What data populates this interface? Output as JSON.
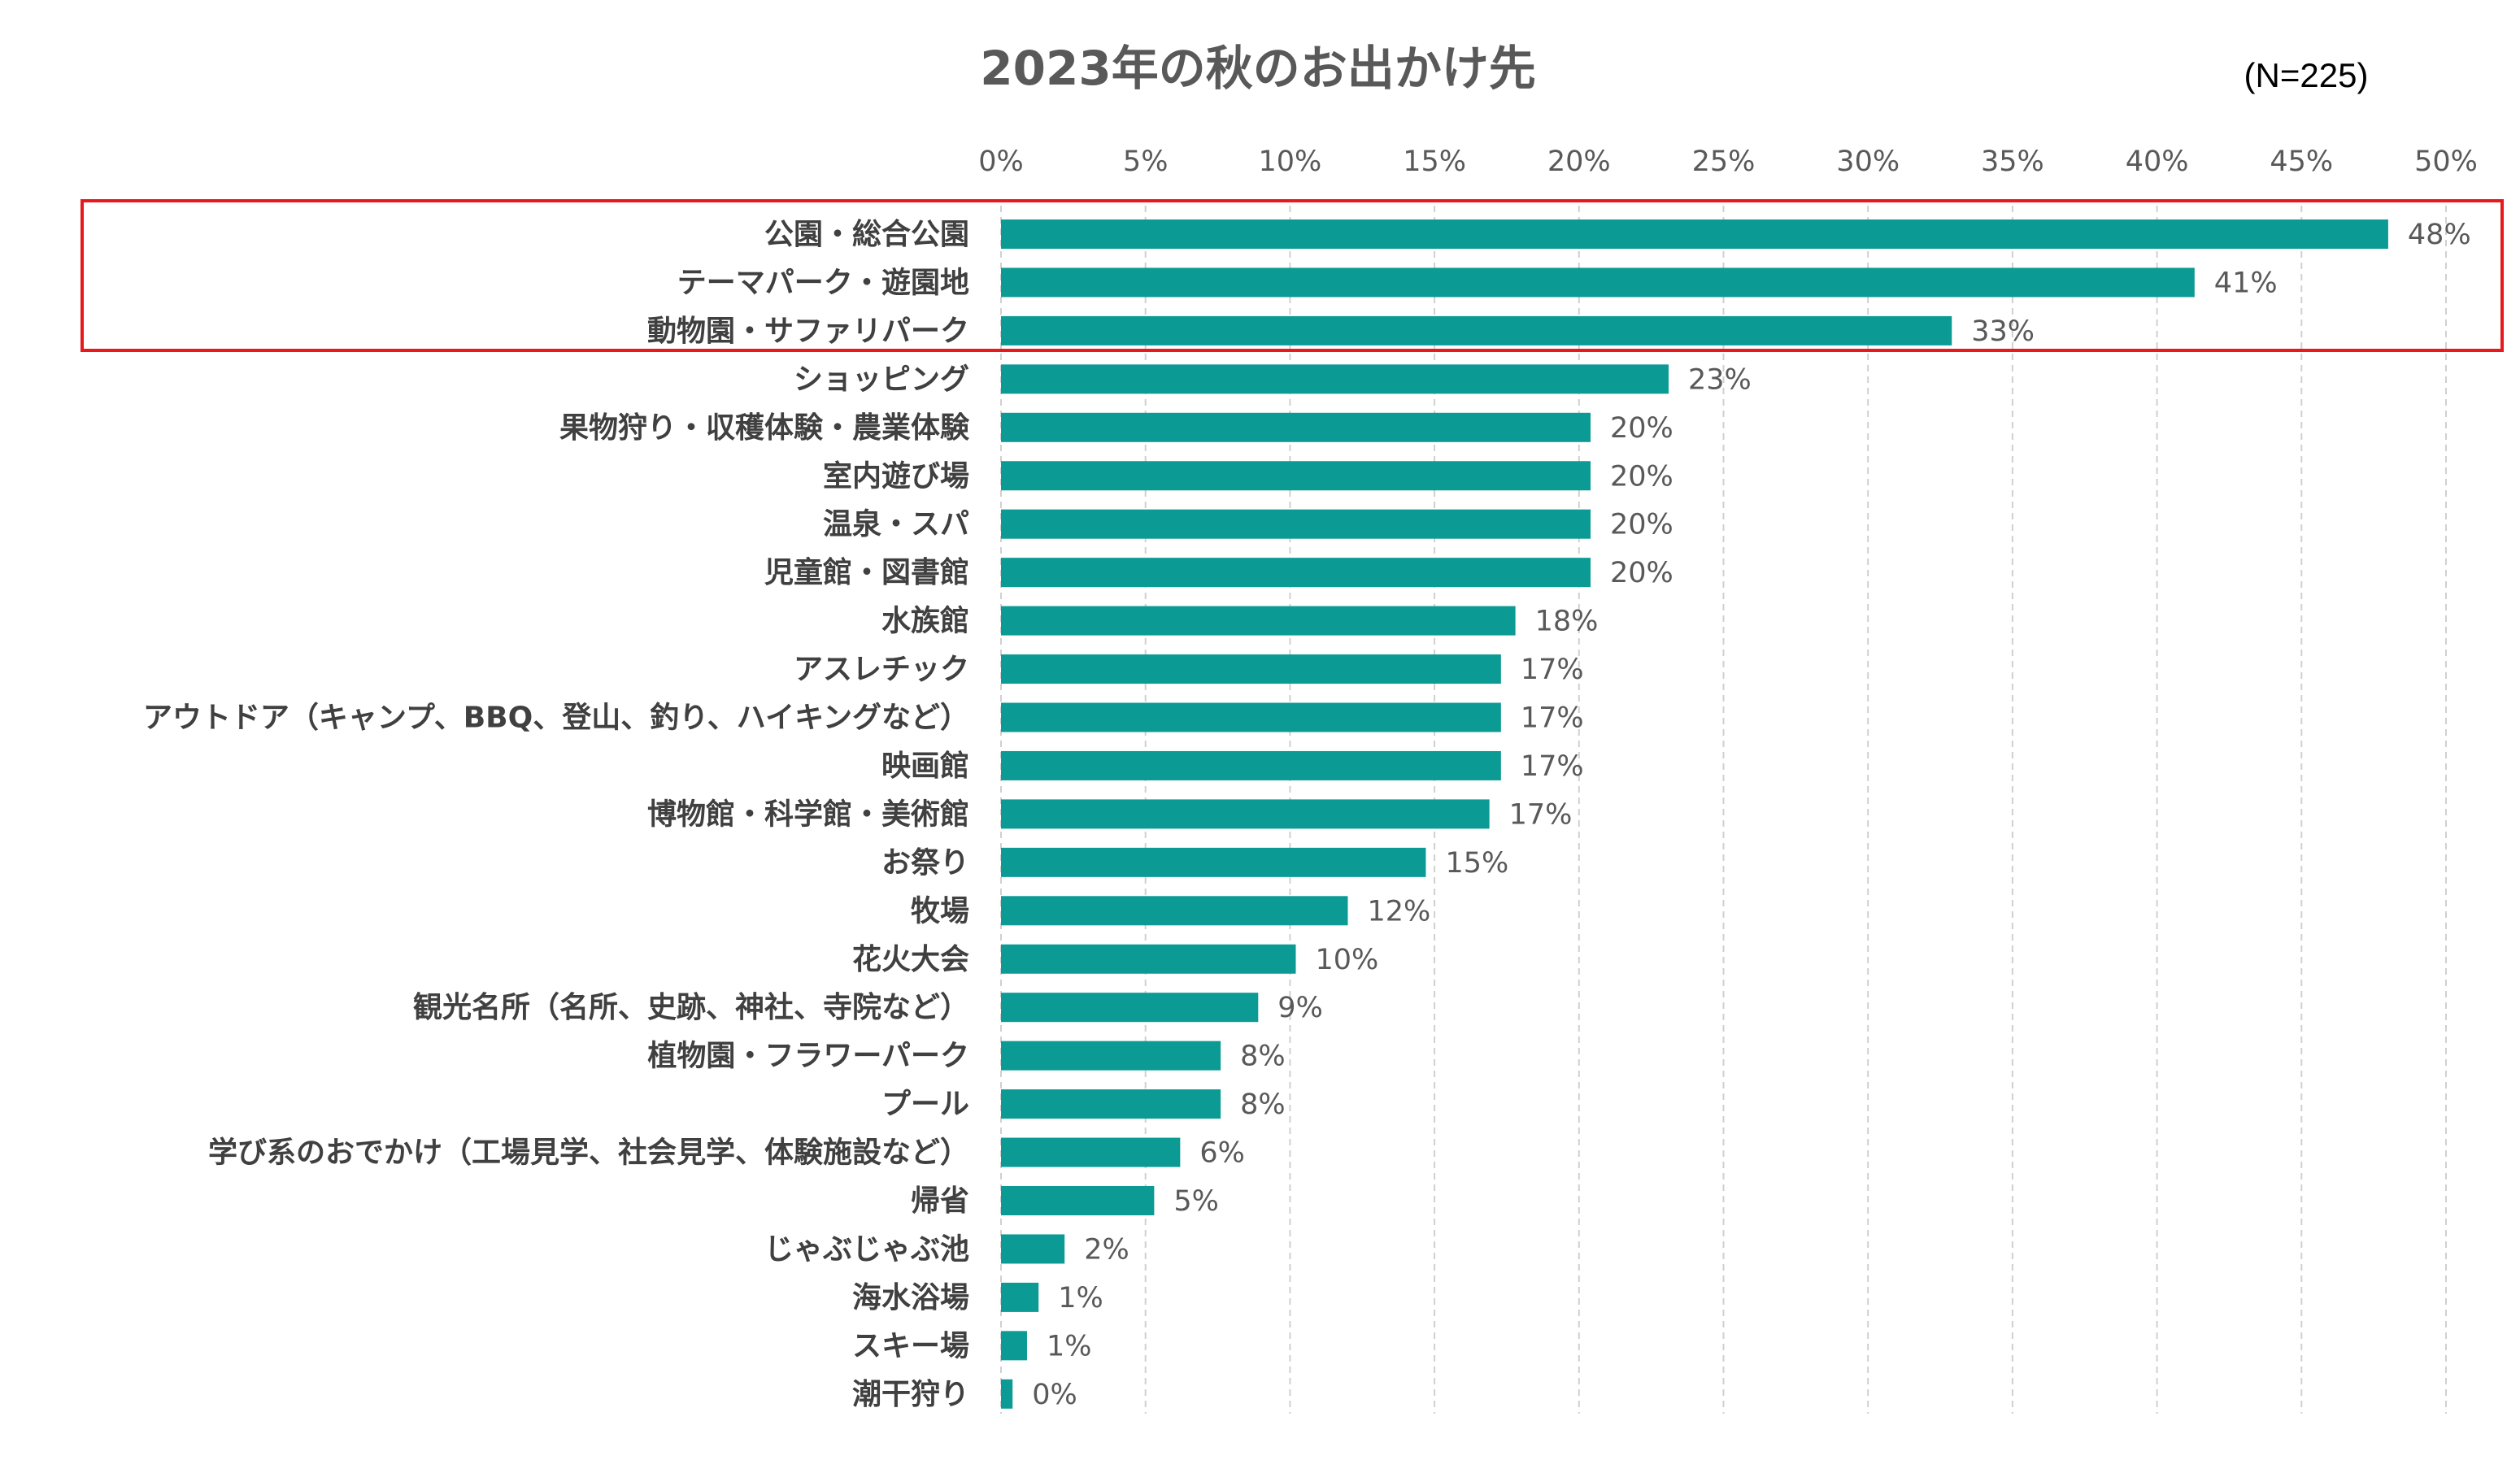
{
  "chart_data": {
    "type": "bar",
    "orientation": "horizontal",
    "title": "2023年の秋のお出かけ先",
    "annotation": "(N=225)",
    "categories": [
      "公園・総合公園",
      "テーマパーク・遊園地",
      "動物園・サファリパーク",
      "ショッピング",
      "果物狩り・収穫体験・農業体験",
      "室内遊び場",
      "温泉・スパ",
      "児童館・図書館",
      "水族館",
      "アスレチック",
      "アウトドア（キャンプ、BBQ、登山、釣り、ハイキングなど）",
      "映画館",
      "博物館・科学館・美術館",
      "お祭り",
      "牧場",
      "花火大会",
      "観光名所（名所、史跡、神社、寺院など）",
      "植物園・フラワーパーク",
      "プール",
      "学び系のおでかけ（工場見学、社会見学、体験施設など）",
      "帰省",
      "じゃぶじゃぶ池",
      "海水浴場",
      "スキー場",
      "潮干狩り"
    ],
    "values": [
      48.0,
      41.3,
      32.9,
      23.1,
      20.4,
      20.4,
      20.4,
      20.4,
      17.8,
      17.3,
      17.3,
      17.3,
      16.9,
      14.7,
      12.0,
      10.2,
      8.9,
      7.6,
      7.6,
      6.2,
      5.3,
      2.2,
      1.3,
      0.9,
      0.4
    ],
    "value_labels": [
      "48%",
      "41%",
      "33%",
      "23%",
      "20%",
      "20%",
      "20%",
      "20%",
      "18%",
      "17%",
      "17%",
      "17%",
      "17%",
      "15%",
      "12%",
      "10%",
      "9%",
      "8%",
      "8%",
      "6%",
      "5%",
      "2%",
      "1%",
      "1%",
      "0%"
    ],
    "color": "#0b9a94",
    "xlim": [
      0,
      50
    ],
    "xticks": [
      {
        "value": 0,
        "label": "0%"
      },
      {
        "value": 5,
        "label": "5%"
      },
      {
        "value": 10,
        "label": "10%"
      },
      {
        "value": 15,
        "label": "15%"
      },
      {
        "value": 20,
        "label": "20%"
      },
      {
        "value": 25,
        "label": "25%"
      },
      {
        "value": 30,
        "label": "30%"
      },
      {
        "value": 35,
        "label": "35%"
      },
      {
        "value": 40,
        "label": "40%"
      },
      {
        "value": 45,
        "label": "45%"
      },
      {
        "value": 50,
        "label": "50%"
      }
    ],
    "grid": true
  }
}
